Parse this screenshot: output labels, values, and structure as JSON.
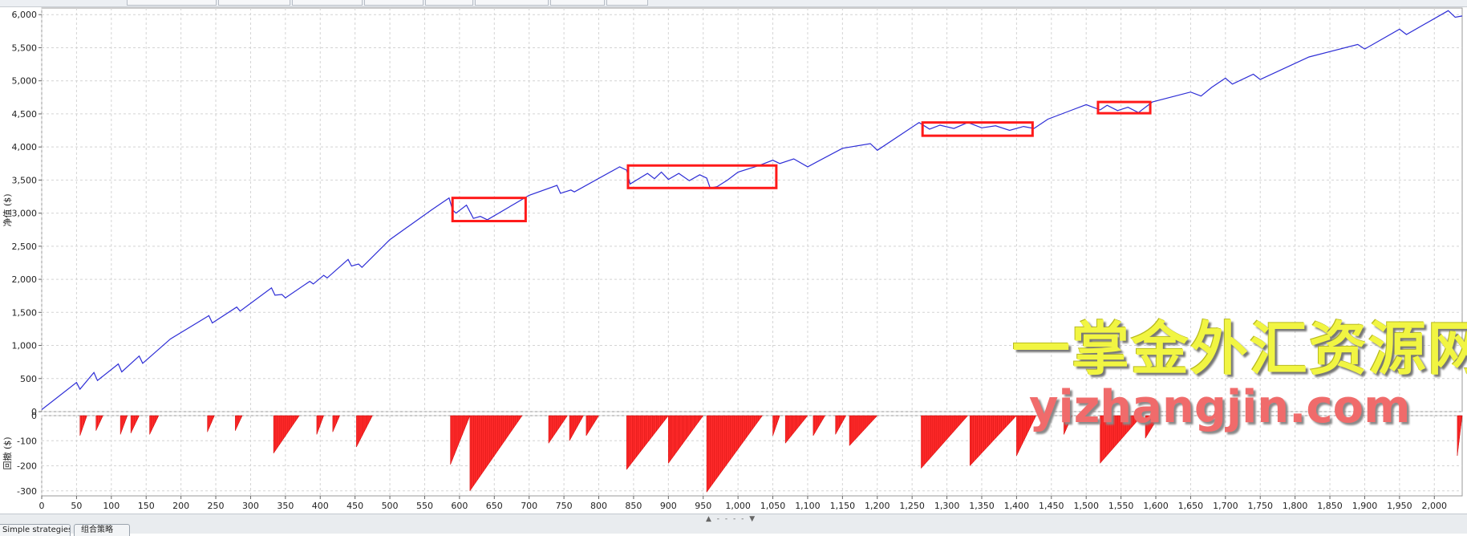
{
  "tabs": {
    "bottom": [
      "Simple strategies",
      "组合策略"
    ]
  },
  "watermark": {
    "cn": "一掌金外汇资源网",
    "url": "yizhangjin.com"
  },
  "colors": {
    "equity_line": "#2d2dd6",
    "drawdown_fill": "#ff2a2a",
    "highlight_box": "#ff1a1a",
    "grid": "#d4d4d4"
  },
  "chart_data": [
    {
      "type": "line",
      "title": "",
      "xlabel": "",
      "ylabel": "净值 ($)",
      "xlim": [
        0,
        2040
      ],
      "ylim": [
        0,
        6100
      ],
      "yticks": [
        0,
        500,
        1000,
        1500,
        2000,
        2500,
        3000,
        3500,
        4000,
        4500,
        5000,
        5500,
        6000
      ],
      "grid": true,
      "series": [
        {
          "x": [
            0,
            50,
            55,
            75,
            80,
            110,
            115,
            140,
            145,
            185,
            240,
            245,
            280,
            285,
            330,
            335,
            345,
            350,
            385,
            390,
            405,
            410,
            440,
            445,
            455,
            460,
            500,
            560,
            585,
            590,
            595,
            610,
            620,
            630,
            640,
            700,
            740,
            745,
            760,
            765,
            830,
            840,
            845,
            870,
            880,
            890,
            900,
            915,
            930,
            945,
            955,
            960,
            970,
            985,
            1000,
            1030,
            1050,
            1060,
            1080,
            1100,
            1150,
            1190,
            1200,
            1260,
            1275,
            1290,
            1310,
            1330,
            1350,
            1370,
            1390,
            1410,
            1425,
            1445,
            1480,
            1500,
            1520,
            1530,
            1545,
            1560,
            1575,
            1595,
            1650,
            1665,
            1680,
            1700,
            1710,
            1740,
            1750,
            1820,
            1890,
            1900,
            1950,
            1960,
            2020,
            2030,
            2040
          ],
          "y": [
            30,
            440,
            340,
            590,
            470,
            720,
            600,
            840,
            730,
            1100,
            1450,
            1340,
            1580,
            1520,
            1870,
            1760,
            1770,
            1720,
            1970,
            1930,
            2060,
            2020,
            2300,
            2200,
            2230,
            2180,
            2600,
            3050,
            3230,
            3050,
            3000,
            3120,
            2920,
            2950,
            2900,
            3270,
            3420,
            3300,
            3350,
            3320,
            3700,
            3650,
            3440,
            3600,
            3520,
            3620,
            3510,
            3600,
            3490,
            3580,
            3530,
            3380,
            3400,
            3500,
            3620,
            3720,
            3800,
            3750,
            3820,
            3700,
            3980,
            4050,
            3950,
            4370,
            4270,
            4330,
            4280,
            4370,
            4290,
            4320,
            4250,
            4310,
            4280,
            4420,
            4560,
            4640,
            4560,
            4630,
            4550,
            4600,
            4520,
            4680,
            4830,
            4770,
            4900,
            5040,
            4950,
            5100,
            5020,
            5360,
            5550,
            5480,
            5780,
            5700,
            6060,
            5960,
            5980
          ]
        }
      ],
      "highlight_boxes": [
        {
          "x": [
            590,
            695
          ],
          "y": [
            2880,
            3230
          ]
        },
        {
          "x": [
            842,
            1055
          ],
          "y": [
            3380,
            3720
          ]
        },
        {
          "x": [
            1265,
            1423
          ],
          "y": [
            4170,
            4370
          ]
        },
        {
          "x": [
            1517,
            1592
          ],
          "y": [
            4510,
            4680
          ]
        }
      ]
    },
    {
      "type": "area",
      "title": "",
      "xlabel": "",
      "ylabel": "回撤 ($)",
      "xlim": [
        0,
        2040
      ],
      "ylim": [
        -320,
        0
      ],
      "yticks": [
        0,
        -100,
        -200,
        -300
      ],
      "xticks": [
        0,
        50,
        100,
        150,
        200,
        250,
        300,
        350,
        400,
        450,
        500,
        550,
        600,
        650,
        700,
        750,
        800,
        850,
        900,
        950,
        1000,
        1050,
        1100,
        1150,
        1200,
        1250,
        1300,
        1350,
        1400,
        1450,
        1500,
        1550,
        1600,
        1650,
        1700,
        1750,
        1800,
        1850,
        1900,
        1950,
        2000
      ],
      "grid": true,
      "drawdowns": [
        {
          "start": 55,
          "depth": 80,
          "end": 65
        },
        {
          "start": 78,
          "depth": 60,
          "end": 88
        },
        {
          "start": 113,
          "depth": 75,
          "end": 123
        },
        {
          "start": 128,
          "depth": 70,
          "end": 140
        },
        {
          "start": 155,
          "depth": 75,
          "end": 168
        },
        {
          "start": 238,
          "depth": 65,
          "end": 248
        },
        {
          "start": 278,
          "depth": 60,
          "end": 288
        },
        {
          "start": 333,
          "depth": 150,
          "end": 370
        },
        {
          "start": 395,
          "depth": 75,
          "end": 405
        },
        {
          "start": 418,
          "depth": 65,
          "end": 428
        },
        {
          "start": 452,
          "depth": 125,
          "end": 475
        },
        {
          "start": 587,
          "depth": 195,
          "end": 615
        },
        {
          "start": 615,
          "depth": 300,
          "end": 690
        },
        {
          "start": 728,
          "depth": 110,
          "end": 755
        },
        {
          "start": 758,
          "depth": 100,
          "end": 778
        },
        {
          "start": 782,
          "depth": 80,
          "end": 800
        },
        {
          "start": 840,
          "depth": 215,
          "end": 900
        },
        {
          "start": 900,
          "depth": 190,
          "end": 950
        },
        {
          "start": 955,
          "depth": 305,
          "end": 1035
        },
        {
          "start": 1050,
          "depth": 80,
          "end": 1060
        },
        {
          "start": 1068,
          "depth": 110,
          "end": 1100
        },
        {
          "start": 1108,
          "depth": 80,
          "end": 1125
        },
        {
          "start": 1140,
          "depth": 75,
          "end": 1155
        },
        {
          "start": 1160,
          "depth": 120,
          "end": 1200
        },
        {
          "start": 1263,
          "depth": 210,
          "end": 1330
        },
        {
          "start": 1333,
          "depth": 200,
          "end": 1400
        },
        {
          "start": 1400,
          "depth": 160,
          "end": 1428
        },
        {
          "start": 1468,
          "depth": 75,
          "end": 1480
        },
        {
          "start": 1520,
          "depth": 190,
          "end": 1580
        },
        {
          "start": 1585,
          "depth": 90,
          "end": 1605
        },
        {
          "start": 2033,
          "depth": 160,
          "end": 2040
        }
      ]
    }
  ]
}
